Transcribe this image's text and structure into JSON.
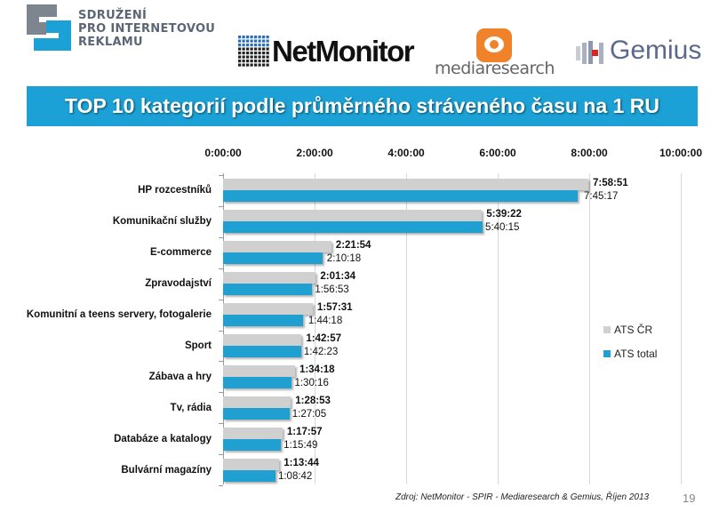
{
  "logos": {
    "spir": "SDRUŽENÍ\nPRO INTERNETOVOU\nREKLAMU",
    "netmonitor": "NetMonitor",
    "mediaresearch": "mediaresearch",
    "gemius": "Gemius"
  },
  "colors": {
    "banner": "#1ba1d5",
    "ats_cr": "#d0d0d0",
    "ats_total": "#1fa0d0",
    "orange": "#f0832a"
  },
  "chart_data": {
    "type": "bar",
    "orientation": "horizontal",
    "title": "TOP 10 kategorií podle průměrného stráveného času na 1 RU",
    "xlim": [
      "0:00:00",
      "10:00:00"
    ],
    "xticks": [
      "0:00:00",
      "2:00:00",
      "4:00:00",
      "6:00:00",
      "8:00:00",
      "10:00:00"
    ],
    "grid": true,
    "legend_position": "right",
    "categories": [
      "HP rozcestníků",
      "Komunikační služby",
      "E-commerce",
      "Zpravodajství",
      "Komunitní a teens servery, fotogalerie",
      "Sport",
      "Zábava a hry",
      "Tv, rádia",
      "Databáze a katalogy",
      "Bulvární magazíny"
    ],
    "series": [
      {
        "name": "ATS ČR",
        "values": [
          "7:58:51",
          "5:39:22",
          "2:21:54",
          "2:01:34",
          "1:57:31",
          "1:42:57",
          "1:34:18",
          "1:28:53",
          "1:17:57",
          "1:13:44"
        ]
      },
      {
        "name": "ATS total",
        "values": [
          "7:45:17",
          "5:40:15",
          "2:10:18",
          "1:56:53",
          "1:44:18",
          "1:42:23",
          "1:30:16",
          "1:27:05",
          "1:15:49",
          "1:08:42"
        ]
      }
    ]
  },
  "footer": {
    "source": "Zdroj: NetMonitor - SPIR - Mediaresearch & Gemius, Říjen 2013",
    "page": "19"
  }
}
